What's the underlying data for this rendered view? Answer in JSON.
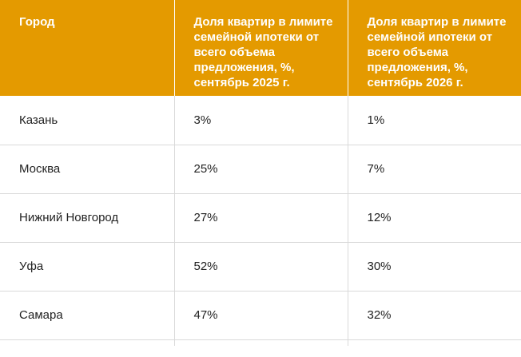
{
  "table": {
    "headers": [
      "Город",
      "Доля квартир в лимите семейной ипотеки от всего объема предложения, %, сентябрь 2025 г.",
      "Доля квартир в лимите семейной ипотеки от всего объема предложения, %, сентябрь 2026 г."
    ],
    "rows": [
      [
        "Казань",
        "3%",
        "1%"
      ],
      [
        "Москва",
        "25%",
        "7%"
      ],
      [
        "Нижний Новгород",
        "27%",
        "12%"
      ],
      [
        "Уфа",
        "52%",
        "30%"
      ],
      [
        "Самара",
        "47%",
        "32%"
      ]
    ]
  },
  "colors": {
    "header_bg": "#e49a00",
    "header_text": "#ffffff",
    "grid": "#d9d9d9",
    "body_text": "#222222"
  }
}
